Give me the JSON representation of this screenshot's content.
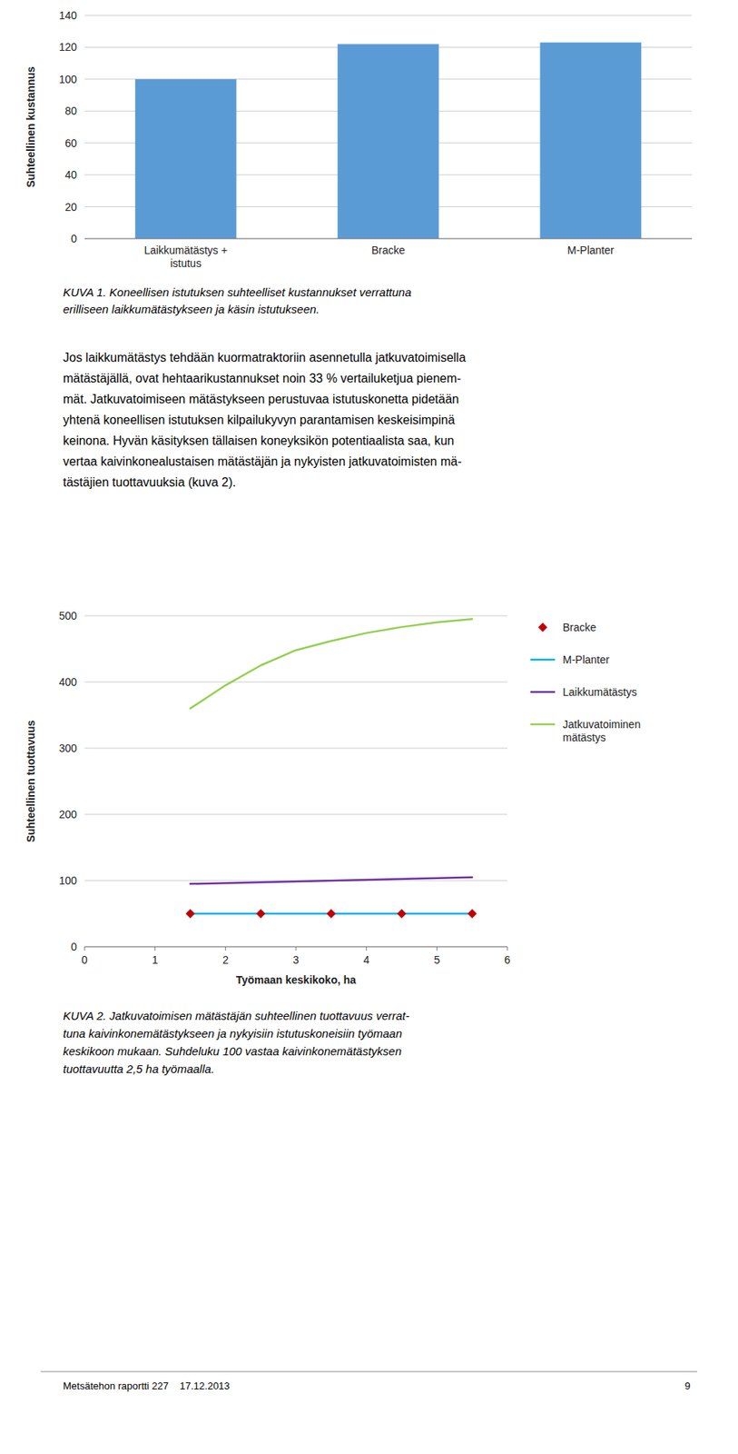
{
  "chart_data": [
    {
      "type": "bar",
      "categories": [
        "Laikkumätästys +\nistutus",
        "Bracke",
        "M-Planter"
      ],
      "values": [
        100,
        122,
        123
      ],
      "color": "#5B9BD5",
      "ylabel": "Suhteellinen kustannus",
      "ylim": [
        0,
        140
      ],
      "yticks": [
        0,
        20,
        40,
        60,
        80,
        100,
        120,
        140
      ],
      "grid": true,
      "caption": [
        "KUVA 1. Koneellisen istutuksen suhteelliset kustannukset verrattuna",
        "erilliseen laikkumätästykseen ja käsin istutukseen."
      ]
    },
    {
      "type": "line",
      "xlabel": "Työmaan keskikoko, ha",
      "ylabel": "Suhteellinen tuottavuus",
      "xlim": [
        0,
        6
      ],
      "ylim": [
        0,
        500
      ],
      "xticks": [
        0,
        1,
        2,
        3,
        4,
        5,
        6
      ],
      "yticks": [
        0,
        100,
        200,
        300,
        400,
        500
      ],
      "grid": true,
      "legend": "right",
      "series": [
        {
          "name": "Jatkuvatoiminen\nmätästys",
          "type": "line",
          "color": "#92D050",
          "x": [
            1.5,
            2.0,
            2.5,
            3.0,
            3.5,
            4.0,
            4.5,
            5.0,
            5.5
          ],
          "values": [
            360,
            395,
            425,
            448,
            462,
            474,
            483,
            490,
            495
          ]
        },
        {
          "name": "Laikkumätästys",
          "type": "line",
          "color": "#7030A0",
          "x": [
            1.5,
            5.5
          ],
          "values": [
            95,
            105
          ]
        },
        {
          "name": "M-Planter",
          "type": "line",
          "color": "#00B0F0",
          "x": [
            1.5,
            5.5
          ],
          "values": [
            50,
            50
          ]
        },
        {
          "name": "Bracke",
          "type": "scatter",
          "marker": "diamond",
          "color": "#C00000",
          "x": [
            1.5,
            2.5,
            3.5,
            4.5,
            5.5
          ],
          "values": [
            50,
            50,
            50,
            50,
            50
          ]
        }
      ],
      "caption": [
        "KUVA 2. Jatkuvatoimisen mätästäjän suhteellinen tuottavuus verrat-",
        "tuna kaivinkonemätästykseen ja nykyisiin istutuskoneisiin työmaan",
        "keskikoon mukaan. Suhdeluku 100 vastaa kaivinkonemätästyksen",
        "tuottavuutta 2,5 ha työmaalla."
      ]
    }
  ],
  "body_text": [
    "Jos laikkumätästys tehdään kuormatraktoriin asennetulla jatkuvatoimisella",
    "mätästäjällä, ovat hehtaarikustannukset noin 33 % vertailuketjua pienem-",
    "mät. Jatkuvatoimiseen mätästykseen perustuvaa istutuskonetta pidetään",
    "yhtenä koneellisen istutuksen kilpailukyvyn parantamisen keskeisimpinä",
    "keinona. Hyvän käsityksen tällaisen koneyksikön potentiaalista saa, kun",
    "vertaa kaivinkonealustaisen mätästäjän ja nykyisten jatkuvatoimisten mä-",
    "tästäjien tuottavuuksia (kuva 2)."
  ],
  "footer": {
    "left": "Metsätehon raportti 227    17.12.2013",
    "right": "9"
  }
}
